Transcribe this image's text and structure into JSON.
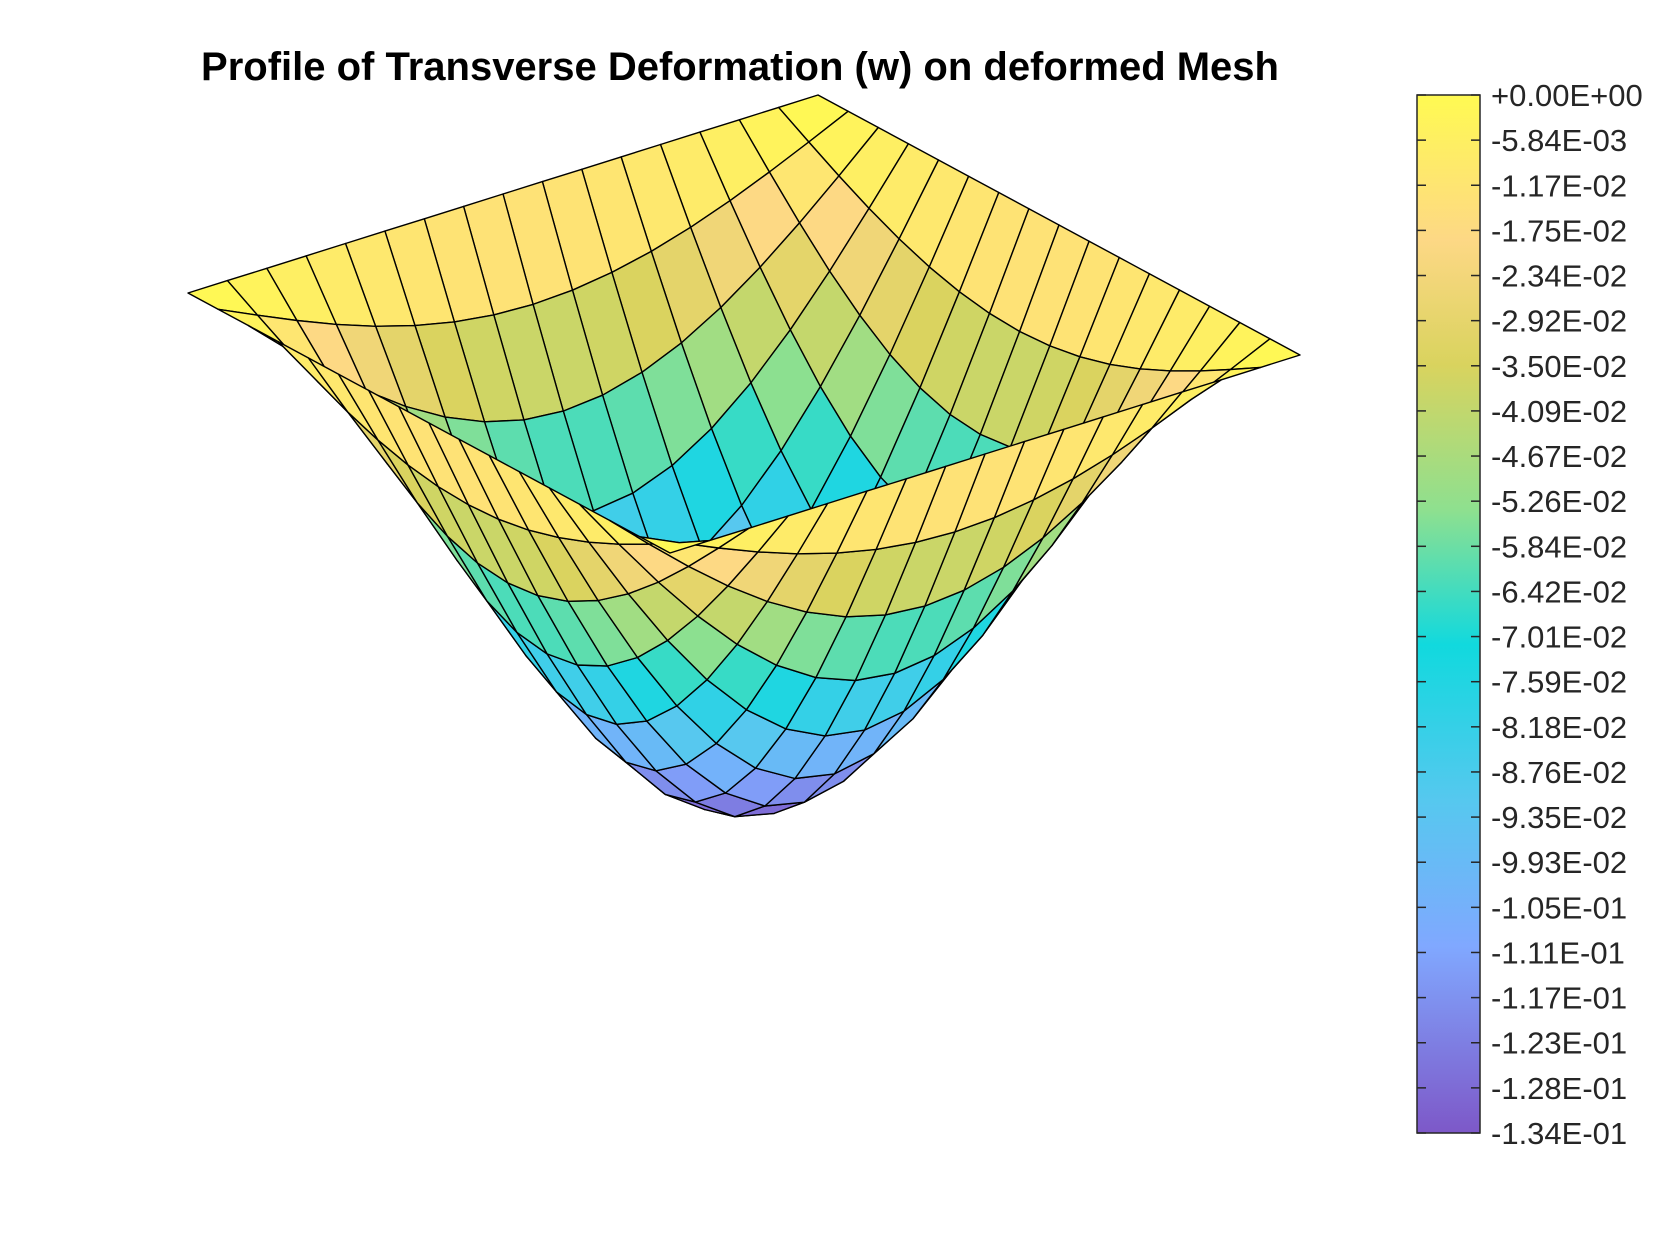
{
  "chart_data": {
    "type": "surface",
    "title": "Profile of Transverse Deformation (w) on deformed Mesh",
    "mesh": {
      "rows": 16,
      "cols": 16
    },
    "w_range": [
      -0.134,
      0
    ],
    "colorbar": {
      "ticks": [
        "+0.00E+00",
        "-5.84E-03",
        "-1.17E-02",
        "-1.75E-02",
        "-2.34E-02",
        "-2.92E-02",
        "-3.50E-02",
        "-4.09E-02",
        "-4.67E-02",
        "-5.26E-02",
        "-5.84E-02",
        "-6.42E-02",
        "-7.01E-02",
        "-7.59E-02",
        "-8.18E-02",
        "-8.76E-02",
        "-9.35E-02",
        "-9.93E-02",
        "-1.05E-01",
        "-1.11E-01",
        "-1.17E-01",
        "-1.23E-01",
        "-1.28E-01",
        "-1.34E-01"
      ],
      "colormap": [
        "#fffa52",
        "#fdd885",
        "#d9d35e",
        "#8ee08f",
        "#11d9de",
        "#56c8ef",
        "#80a8ff",
        "#7d58c8"
      ]
    },
    "grid": false
  }
}
